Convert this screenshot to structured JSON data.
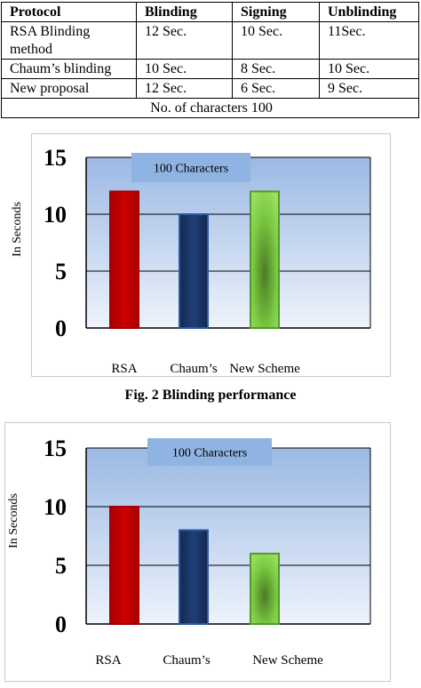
{
  "table": {
    "headers": [
      "Protocol",
      "Blinding",
      "Signing",
      "Unblinding"
    ],
    "rows": [
      [
        "RSA Blinding method",
        "12 Sec.",
        "10 Sec.",
        "11Sec."
      ],
      [
        "Chaum’s blinding",
        "10 Sec.",
        "8 Sec.",
        "10 Sec."
      ],
      [
        "New proposal",
        "12 Sec.",
        "6 Sec.",
        "9 Sec."
      ]
    ],
    "footer": "No. of  characters 100"
  },
  "captions": {
    "fig2": "Fig. 2 Blinding performance"
  },
  "chart_data": [
    {
      "type": "bar",
      "categories": [
        "RSA",
        "Chaum’s",
        "New Scheme"
      ],
      "values": [
        12,
        10,
        12
      ],
      "annotation": "100 Characters",
      "ylabel": "In Seconds",
      "yticks": [
        0,
        5,
        10,
        15
      ],
      "ylim": [
        0,
        15
      ],
      "grid": true,
      "bar_colors": [
        "#cc0000",
        "#1f3f78",
        "#7ac943"
      ],
      "plot_background": "#9bb9e4"
    },
    {
      "type": "bar",
      "categories": [
        "RSA",
        "Chaum’s",
        "New Scheme"
      ],
      "values": [
        10,
        8,
        6
      ],
      "annotation": "100 Characters",
      "ylabel": "In Seconds",
      "yticks": [
        0,
        5,
        10,
        15
      ],
      "ylim": [
        0,
        15
      ],
      "grid": true,
      "bar_colors": [
        "#cc0000",
        "#1f3f78",
        "#7ac943"
      ],
      "plot_background": "#9bb9e4"
    }
  ]
}
